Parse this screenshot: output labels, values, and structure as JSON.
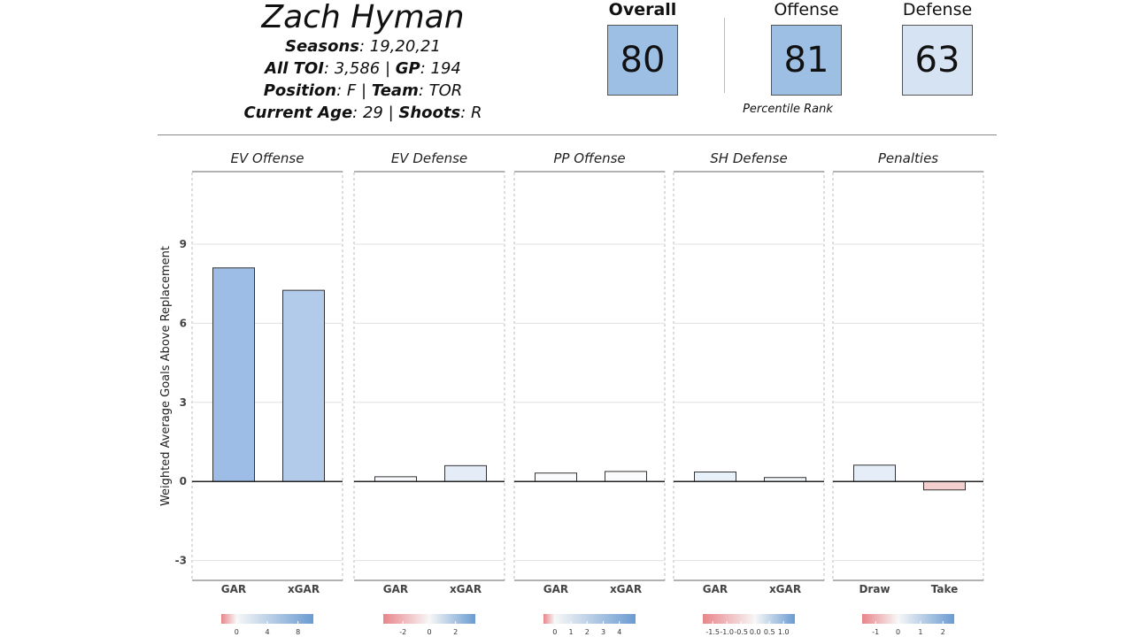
{
  "player": {
    "name": "Zach Hyman",
    "seasons_label": "Seasons",
    "seasons_value": ": 19,20,21",
    "toi_label": "All TOI",
    "toi_value": ": 3,586 | ",
    "gp_label": "GP",
    "gp_value": ": 194",
    "position_label": "Position",
    "position_value": ": F | ",
    "team_label": "Team",
    "team_value": ": TOR",
    "age_label": "Current Age",
    "age_value": ": 29 | ",
    "shoots_label": "Shoots",
    "shoots_value": ": R"
  },
  "ranks": {
    "overall": {
      "label": "Overall",
      "value": "80",
      "percentile": 80,
      "color": "#9dbfe4"
    },
    "offense": {
      "label": "Offense",
      "value": "81",
      "percentile": 81,
      "color": "#9dbfe4"
    },
    "defense": {
      "label": "Defense",
      "value": "63",
      "percentile": 63,
      "color": "#d5e3f3"
    },
    "caption": "Percentile Rank"
  },
  "chart_data": {
    "type": "bar",
    "ylabel": "Weighted Average Goals Above Replacement",
    "ylim": [
      -3.75,
      11.75
    ],
    "yticks": [
      -3,
      0,
      3,
      6,
      9
    ],
    "grid": true,
    "panels": [
      {
        "title": "EV Offense",
        "categories": [
          "GAR",
          "xGAR"
        ],
        "values": [
          8.1,
          7.25
        ],
        "bar_colors": [
          "#9dbde6",
          "#b3cbeb"
        ],
        "legend": {
          "ticks": [
            "0",
            "4",
            "8"
          ],
          "tick_values": [
            0,
            4,
            8
          ],
          "range": [
            -2,
            10
          ]
        }
      },
      {
        "title": "EV Defense",
        "categories": [
          "GAR",
          "xGAR"
        ],
        "values": [
          0.18,
          0.6
        ],
        "bar_colors": [
          "#f7f9fc",
          "#e3ecf7"
        ],
        "legend": {
          "ticks": [
            "-2",
            "0",
            "2"
          ],
          "tick_values": [
            -2,
            0,
            2
          ],
          "range": [
            -3.5,
            3.5
          ]
        }
      },
      {
        "title": "PP Offense",
        "categories": [
          "GAR",
          "xGAR"
        ],
        "values": [
          0.32,
          0.38
        ],
        "bar_colors": [
          "#f9fbfd",
          "#f9fbfd"
        ],
        "legend": {
          "ticks": [
            "0",
            "1",
            "2",
            "3",
            "4"
          ],
          "tick_values": [
            0,
            1,
            2,
            3,
            4
          ],
          "range": [
            -0.7,
            5
          ]
        }
      },
      {
        "title": "SH Defense",
        "categories": [
          "GAR",
          "xGAR"
        ],
        "values": [
          0.36,
          0.15
        ],
        "bar_colors": [
          "#e8f0f9",
          "#f2f6fb"
        ],
        "legend": {
          "ticks": [
            "-1.5",
            "-1.0",
            "-0.5",
            "0.0",
            "0.5",
            "1.0"
          ],
          "tick_values": [
            -1.5,
            -1.0,
            -0.5,
            0.0,
            0.5,
            1.0
          ],
          "range": [
            -1.85,
            1.4
          ]
        }
      },
      {
        "title": "Penalties",
        "categories": [
          "Draw",
          "Take"
        ],
        "values": [
          0.62,
          -0.32
        ],
        "bar_colors": [
          "#e5edf8",
          "#f4cfd0"
        ],
        "legend": {
          "ticks": [
            "-1",
            "0",
            "1",
            "2"
          ],
          "tick_values": [
            -1,
            0,
            1,
            2
          ],
          "range": [
            -1.6,
            2.5
          ]
        }
      }
    ]
  }
}
